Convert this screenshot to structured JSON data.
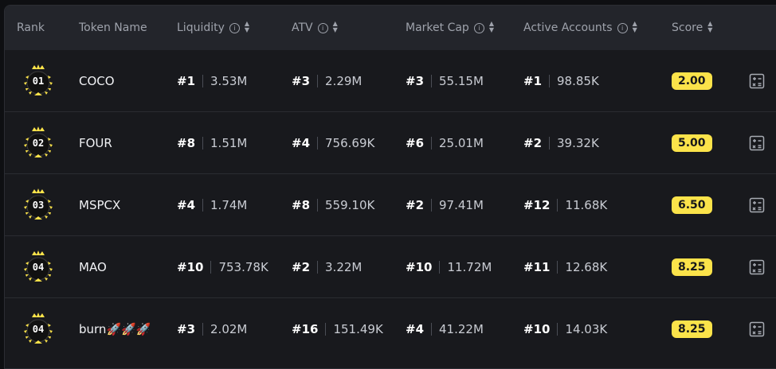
{
  "columns": {
    "rank": "Rank",
    "token": "Token Name",
    "liquidity": "Liquidity",
    "atv": "ATV",
    "market_cap": "Market Cap",
    "active_accounts": "Active Accounts",
    "score": "Score"
  },
  "rows": [
    {
      "badge": "01",
      "token": "COCO",
      "liq_rank": "#1",
      "liq": "3.53M",
      "atv_rank": "#3",
      "atv": "2.29M",
      "mc_rank": "#3",
      "mc": "55.15M",
      "aa_rank": "#1",
      "aa": "98.85K",
      "score": "2.00"
    },
    {
      "badge": "02",
      "token": "FOUR",
      "liq_rank": "#8",
      "liq": "1.51M",
      "atv_rank": "#4",
      "atv": "756.69K",
      "mc_rank": "#6",
      "mc": "25.01M",
      "aa_rank": "#2",
      "aa": "39.32K",
      "score": "5.00"
    },
    {
      "badge": "03",
      "token": "MSPCX",
      "liq_rank": "#4",
      "liq": "1.74M",
      "atv_rank": "#8",
      "atv": "559.10K",
      "mc_rank": "#2",
      "mc": "97.41M",
      "aa_rank": "#12",
      "aa": "11.68K",
      "score": "6.50"
    },
    {
      "badge": "04",
      "token": "MAO",
      "liq_rank": "#10",
      "liq": "753.78K",
      "atv_rank": "#2",
      "atv": "3.22M",
      "mc_rank": "#10",
      "mc": "11.72M",
      "aa_rank": "#11",
      "aa": "12.68K",
      "score": "8.25"
    },
    {
      "badge": "04",
      "token": "burn🚀🚀🚀",
      "liq_rank": "#3",
      "liq": "2.02M",
      "atv_rank": "#16",
      "atv": "151.49K",
      "mc_rank": "#4",
      "mc": "41.22M",
      "aa_rank": "#10",
      "aa": "14.03K",
      "score": "8.25"
    }
  ],
  "colors": {
    "accent": "#fbe34a",
    "background": "#18191d",
    "header": "#23252b"
  },
  "icons": {
    "info": "info-icon",
    "sort": "sort-icon",
    "action": "calculator-icon",
    "badge": "crown-laurel-icon"
  }
}
